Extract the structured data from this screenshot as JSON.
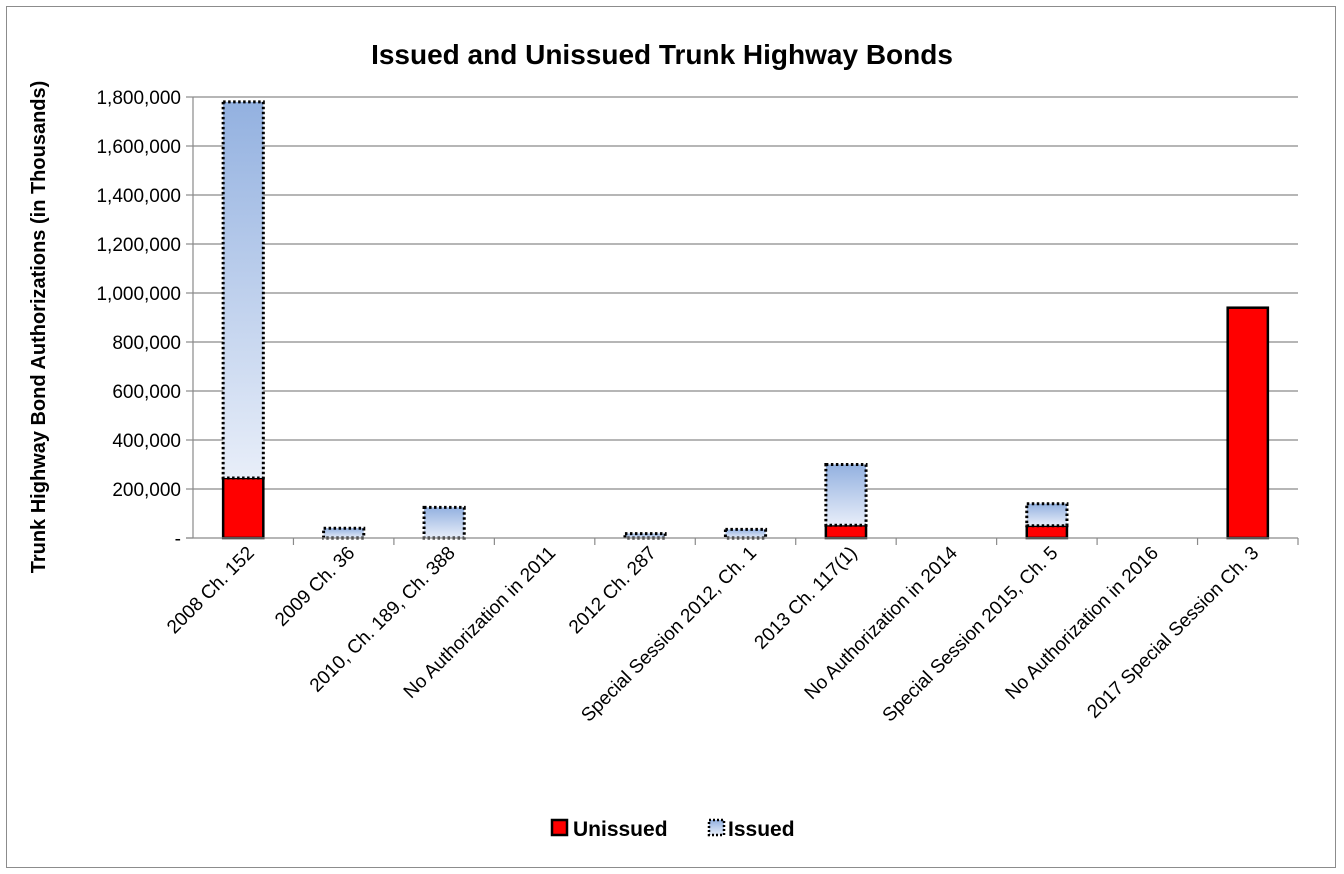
{
  "chart_data": {
    "type": "bar",
    "stacked": true,
    "title": "Issued and Unissued Trunk Highway Bonds",
    "ylabel": "Trunk Highway Bond Authorizations (in Thousands)",
    "xlabel": "",
    "ylim": [
      0,
      1800000
    ],
    "yticks": [
      {
        "value": 0,
        "label": "-"
      },
      {
        "value": 200000,
        "label": "200,000"
      },
      {
        "value": 400000,
        "label": "400,000"
      },
      {
        "value": 600000,
        "label": "600,000"
      },
      {
        "value": 800000,
        "label": "800,000"
      },
      {
        "value": 1000000,
        "label": "1,000,000"
      },
      {
        "value": 1200000,
        "label": "1,200,000"
      },
      {
        "value": 1400000,
        "label": "1,400,000"
      },
      {
        "value": 1600000,
        "label": "1,600,000"
      },
      {
        "value": 1800000,
        "label": "1,800,000"
      }
    ],
    "grid": true,
    "legend_position": "bottom",
    "categories": [
      "2008 Ch. 152",
      "2009 Ch. 36",
      "2010, Ch. 189, Ch. 388",
      "No Authorization in 2011",
      "2012 Ch. 287",
      "Special Session 2012, Ch. 1",
      "2013 Ch. 117(1)",
      "No Authorization in 2014",
      "Special Session 2015, Ch. 5",
      "No Authorization in 2016",
      "2017 Special Session Ch. 3"
    ],
    "series": [
      {
        "name": "Unissued",
        "color": "#ff0000",
        "values": [
          245000,
          0,
          0,
          0,
          0,
          0,
          52000,
          0,
          50000,
          0,
          940000
        ]
      },
      {
        "name": "Issued",
        "color": "#a6bee6",
        "values": [
          1535000,
          40000,
          125000,
          0,
          18000,
          35000,
          248000,
          0,
          90000,
          0,
          0
        ]
      }
    ]
  }
}
